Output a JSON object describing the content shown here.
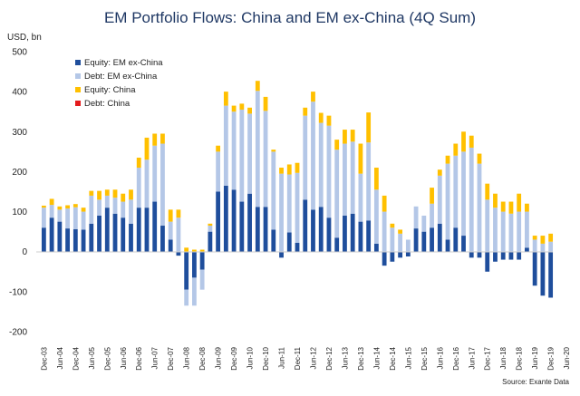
{
  "chart_data": {
    "type": "bar",
    "stacked": true,
    "title": "EM Portfolio Flows: China and EM ex-China (4Q Sum)",
    "ylabel": "USD, bn",
    "ylim": [
      -200,
      500
    ],
    "yticks": [
      -200,
      -100,
      0,
      100,
      200,
      300,
      400,
      500
    ],
    "source": "Source: Exante Data",
    "legend_position": "top-left",
    "x_start": "Dec-03",
    "frequency": "quarterly",
    "xtick_labels": [
      "Dec-03",
      "Jun-04",
      "Dec-04",
      "Jun-05",
      "Dec-05",
      "Jun-06",
      "Dec-06",
      "Jun-07",
      "Dec-07",
      "Jun-08",
      "Dec-08",
      "Jun-09",
      "Dec-09",
      "Jun-10",
      "Dec-10",
      "Jun-11",
      "Dec-11",
      "Jun-12",
      "Dec-12",
      "Jun-13",
      "Dec-13",
      "Jun-14",
      "Dec-14",
      "Jun-15",
      "Dec-15",
      "Jun-16",
      "Dec-16",
      "Jun-17",
      "Dec-17",
      "Jun-18",
      "Dec-18",
      "Jun-19",
      "Dec-19",
      "Jun-20"
    ],
    "series": [
      {
        "name": "Equity: EM ex-China",
        "color": "#1f4e9c",
        "values": [
          60,
          85,
          75,
          58,
          56,
          55,
          70,
          90,
          110,
          95,
          85,
          70,
          110,
          110,
          125,
          65,
          30,
          -10,
          -95,
          -65,
          -45,
          50,
          150,
          165,
          155,
          125,
          145,
          112,
          112,
          55,
          -15,
          48,
          22,
          130,
          105,
          112,
          85,
          35,
          90,
          95,
          75,
          78,
          20,
          -35,
          -25,
          -15,
          -12,
          58,
          50,
          60,
          70,
          30,
          60,
          40,
          -15,
          -15,
          -50,
          -25,
          -20,
          -20,
          -20,
          10,
          -85,
          -110,
          -115
        ]
      },
      {
        "name": "Debt: EM ex-China",
        "color": "#b4c7e7",
        "values": [
          50,
          32,
          30,
          50,
          55,
          45,
          70,
          40,
          30,
          40,
          40,
          60,
          100,
          120,
          140,
          205,
          45,
          85,
          -40,
          -70,
          -50,
          15,
          100,
          200,
          195,
          230,
          200,
          290,
          240,
          195,
          195,
          145,
          175,
          210,
          270,
          210,
          230,
          220,
          180,
          180,
          120,
          195,
          135,
          100,
          60,
          45,
          30,
          55,
          40,
          60,
          120,
          190,
          180,
          210,
          260,
          220,
          130,
          110,
          100,
          95,
          100,
          90,
          30,
          20,
          25
        ]
      },
      {
        "name": "Equity: China",
        "color": "#ffc000",
        "values": [
          5,
          15,
          8,
          8,
          8,
          10,
          12,
          22,
          15,
          20,
          20,
          25,
          25,
          55,
          30,
          25,
          30,
          20,
          10,
          5,
          5,
          5,
          15,
          35,
          15,
          15,
          15,
          25,
          35,
          5,
          15,
          25,
          25,
          20,
          25,
          25,
          25,
          25,
          35,
          30,
          75,
          75,
          55,
          40,
          10,
          10,
          0,
          0,
          0,
          40,
          15,
          20,
          30,
          50,
          30,
          25,
          40,
          35,
          25,
          30,
          45,
          20,
          10,
          20,
          20
        ]
      },
      {
        "name": "Debt: China",
        "color": "#e41a1c",
        "values": [
          0,
          0,
          0,
          0,
          0,
          0,
          0,
          0,
          0,
          0,
          0,
          0,
          0,
          0,
          0,
          0,
          0,
          0,
          0,
          0,
          0,
          0,
          0,
          0,
          0,
          0,
          0,
          0,
          0,
          0,
          0,
          0,
          0,
          0,
          0,
          0,
          0,
          0,
          0,
          0,
          0,
          0,
          0,
          0,
          0,
          0,
          0,
          0,
          0,
          0,
          0,
          0,
          0,
          0,
          0,
          0,
          0,
          0,
          0,
          0,
          0,
          0,
          0,
          0,
          0
        ]
      }
    ]
  }
}
